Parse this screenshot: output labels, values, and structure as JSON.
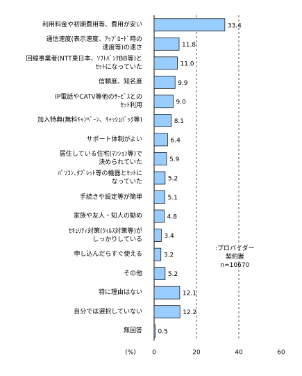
{
  "chart_data": {
    "type": "hbar",
    "categories": [
      "利用料金や初期費用等、費用が安い",
      "通信速度(表示速度、ｱｯﾌﾟﾛｰﾄﾞ時の\n速度等)の速さ",
      "回線事業者(NTT東日本、ｿﾌﾄﾊﾞﾝｸBB等)と\nｾｯﾄになっていた",
      "信頼度、知名度",
      "IP電話やCATV等他のｻｰﾋﾞｽとの\nｾｯﾄ利用",
      "加入特典(無料ｷｬﾝﾍﾟｰﾝ、ｷｬｯｼｭﾊﾞｯｸ等)",
      "サポート体制がよい",
      "居住している住宅(ﾏﾝｼｮﾝ等)で\n決められていた",
      "ﾊﾟｿｺﾝ､ﾀﾌﾞﾚｯﾄ等の機器とｾｯﾄに\nなっていた",
      "手続きや設定等が簡単",
      "家族や友人・知人の勧め",
      "ｾｷｭﾘﾃｨ対策(ｳｨﾙｽ対策等)が\nしっかりしている",
      "申し込んだらすぐ使える",
      "その他",
      "特に理由はない",
      "自分では選択していない",
      "無回答"
    ],
    "values": [
      33.4,
      11.8,
      11.0,
      9.9,
      9.0,
      8.1,
      6.4,
      5.9,
      5.2,
      5.1,
      4.8,
      3.4,
      3.2,
      5.2,
      12.1,
      12.2,
      0.5
    ],
    "value_labels": [
      "33.4",
      "11.8",
      "11.0",
      "9.9",
      "9.0",
      "8.1",
      "6.4",
      "5.9",
      "5.2",
      "5.1",
      "4.8",
      "3.4",
      "3.2",
      "5.2",
      "12.1",
      "12.2",
      "0.5"
    ],
    "color": "#99ccff",
    "xlim": [
      0,
      60
    ],
    "xticks": [
      0,
      20,
      40,
      60
    ],
    "xlabel": "(%)",
    "annotation": ":プロバイダー\n契約者\nn=10670",
    "grid": true
  }
}
